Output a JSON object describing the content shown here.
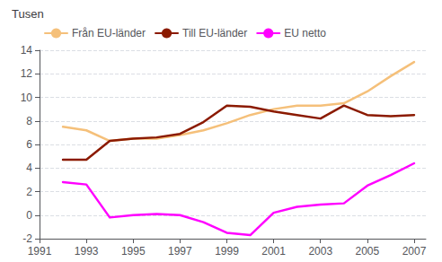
{
  "chart_data": {
    "type": "line",
    "title": "Tusen",
    "x": [
      1992,
      1993,
      1994,
      1995,
      1996,
      1997,
      1998,
      1999,
      2000,
      2001,
      2002,
      2003,
      2004,
      2005,
      2006,
      2007
    ],
    "series": [
      {
        "name": "Från EU-länder",
        "color": "#F5C07A",
        "values": [
          7.5,
          7.2,
          6.3,
          6.5,
          6.5,
          6.8,
          7.2,
          7.8,
          8.5,
          9.0,
          9.3,
          9.3,
          9.5,
          10.5,
          11.8,
          13.0
        ]
      },
      {
        "name": "Till EU-länder",
        "color": "#8B1A00",
        "values": [
          4.7,
          4.7,
          6.3,
          6.5,
          6.6,
          6.9,
          7.9,
          9.3,
          9.2,
          8.8,
          8.5,
          8.2,
          9.3,
          8.5,
          8.4,
          8.5
        ]
      },
      {
        "name": "EU netto",
        "color": "#FF00FF",
        "values": [
          2.8,
          2.6,
          -0.2,
          0.0,
          0.1,
          0.0,
          -0.6,
          -1.5,
          -1.7,
          0.2,
          0.7,
          0.9,
          1.0,
          2.5,
          3.4,
          4.4
        ]
      }
    ],
    "xlim": [
      1991,
      2007.5
    ],
    "xticks": [
      1991,
      1993,
      1995,
      1997,
      1999,
      2001,
      2003,
      2005,
      2007
    ],
    "ylim": [
      -2,
      14
    ],
    "yticks": [
      -2,
      0,
      2,
      4,
      6,
      8,
      10,
      12,
      14
    ],
    "grid": true,
    "legend": "upper left"
  }
}
